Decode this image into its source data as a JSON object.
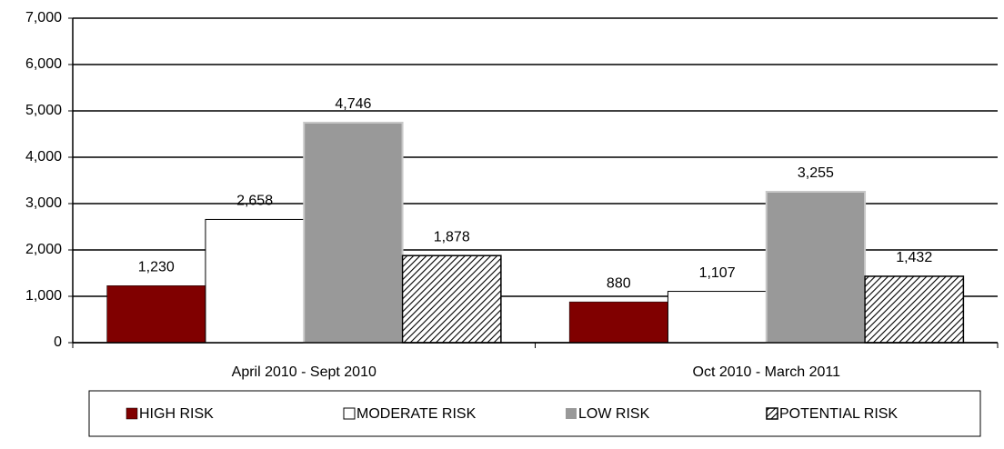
{
  "chart_data": {
    "type": "bar",
    "categories": [
      "April 2010 - Sept 2010",
      "Oct 2010 - March 2011"
    ],
    "series": [
      {
        "name": "HIGH RISK",
        "color": "#800000",
        "values": [
          1230,
          880
        ],
        "value_labels": [
          "1,230",
          "880"
        ]
      },
      {
        "name": "MODERATE RISK",
        "color": "#ffffff",
        "values": [
          2658,
          1107
        ],
        "value_labels": [
          "2,658",
          "1,107"
        ]
      },
      {
        "name": "LOW RISK",
        "color": "#999999",
        "values": [
          4746,
          3255
        ],
        "value_labels": [
          "4,746",
          "3,255"
        ]
      },
      {
        "name": "POTENTIAL RISK",
        "color": "#000000",
        "pattern": "diagonal-hatch",
        "values": [
          1878,
          1432
        ],
        "value_labels": [
          "1,878",
          "1,432"
        ]
      }
    ],
    "ylim": [
      0,
      7000
    ],
    "yticks": [
      0,
      {
        "value": 1000,
        "label": "1,000"
      },
      {
        "value": 2000,
        "label": "2,000"
      },
      {
        "value": 3000,
        "label": "3,000"
      },
      {
        "value": 4000,
        "label": "4,000"
      },
      {
        "value": 5000,
        "label": "5,000"
      },
      {
        "value": 6000,
        "label": "6,000"
      },
      {
        "value": 7000,
        "label": "7,000"
      }
    ],
    "grid": true,
    "legend": "bottom"
  }
}
